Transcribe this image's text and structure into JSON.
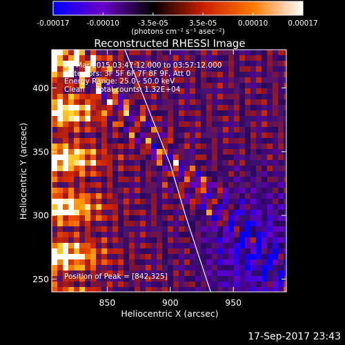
{
  "chart_data": {
    "type": "heatmap",
    "title": "Reconstructed RHESSI Image",
    "xlabel": "Heliocentric X (arcsec)",
    "ylabel": "Heliocentric Y (arcsec)",
    "xlim": [
      806,
      992
    ],
    "ylim": [
      240,
      430
    ],
    "x_ticks": [
      "850",
      "900",
      "950"
    ],
    "y_ticks": [
      "250",
      "300",
      "350",
      "400"
    ],
    "colorbar": {
      "range": [
        -0.00017,
        0.00017
      ],
      "tick_labels": [
        "-0.00017",
        "-0.00010",
        "-3.5e-05",
        "3.5e-05",
        "0.00010",
        "0.00017"
      ],
      "units": "(photons cm⁻² s⁻¹ asec⁻²)",
      "colors": [
        "#0000ff",
        "#6a00c8",
        "#000000",
        "#c81e00",
        "#ff7800",
        "#ffffff"
      ]
    },
    "limb_line": {
      "x": [
        864,
        868,
        876,
        888,
        900,
        912,
        922,
        932
      ],
      "y": [
        430,
        420,
        400,
        370,
        340,
        300,
        270,
        240
      ]
    },
    "peak": {
      "x": 842,
      "y": 325
    }
  },
  "annotations": {
    "line1": "29-Mar-2015 03:47:12.000 to 03:57:12.000",
    "line2": "Detectors: 3F 5F 6F 7F 8F 9F, Att 0",
    "line3": "Energy Range: 25.0 - 50.0 keV",
    "line4": "Clean     Total counts: 1.32E+04",
    "peak_text": "Position of Peak = [842,325]"
  },
  "timestamp": "17-Sep-2017 23:43"
}
